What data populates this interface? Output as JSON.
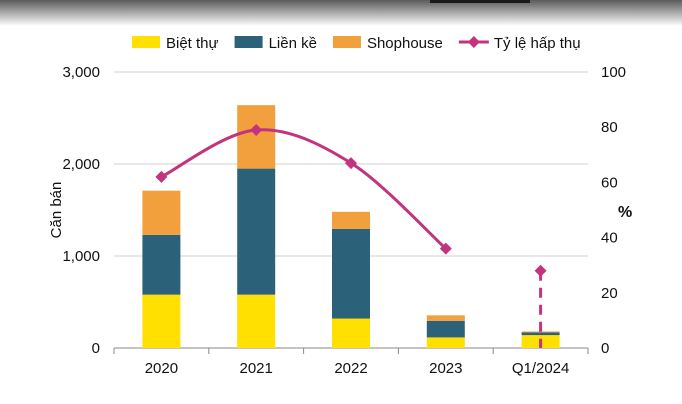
{
  "chart_data": {
    "type": "bar",
    "categories": [
      "2020",
      "2021",
      "2022",
      "2023",
      "Q1/2024"
    ],
    "series": [
      {
        "name": "Biệt thự",
        "values": [
          580,
          580,
          320,
          115,
          140
        ],
        "color": "#ffe000"
      },
      {
        "name": "Liền kề",
        "values": [
          650,
          1370,
          975,
          180,
          30
        ],
        "color": "#2b627a"
      },
      {
        "name": "Shophouse",
        "values": [
          480,
          690,
          185,
          60,
          10
        ],
        "color": "#f2a03d"
      }
    ],
    "line_series": {
      "name": "Tỷ lệ hấp thụ",
      "values": [
        62,
        79,
        67,
        36,
        28
      ],
      "color": "#c2357e",
      "axis": "right",
      "dashed_last": true
    },
    "ylabel": "Căn bán",
    "y2label": "%",
    "ylim": [
      0,
      3000
    ],
    "y2lim": [
      0,
      100
    ],
    "yticks": [
      "0",
      "1,000",
      "2,000",
      "3,000"
    ],
    "y2ticks": [
      "0",
      "20",
      "40",
      "60",
      "80",
      "100"
    ],
    "grid": true,
    "legend_position": "top"
  }
}
